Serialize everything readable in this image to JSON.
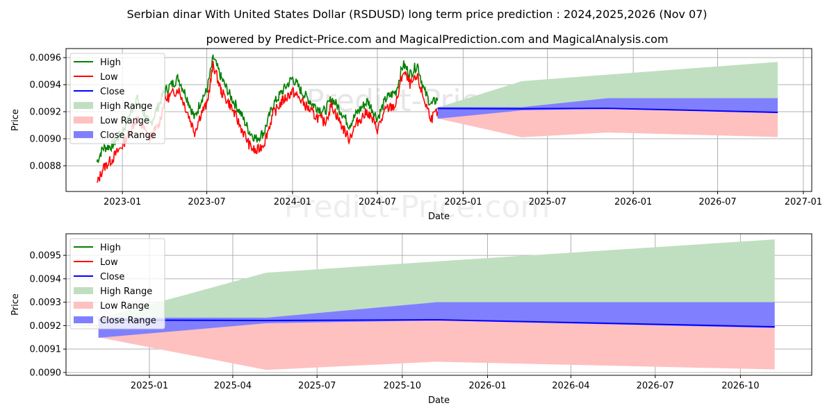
{
  "title": "Serbian dinar With United States Dollar (RSDUSD) long term price prediction : 2024,2025,2026 (Nov 07)",
  "subtitle": "powered by Predict-Price.com and MagicalPrediction.com and MagicalAnalysis.com",
  "watermark": "Predict-Price.com",
  "colors": {
    "high": "#008000",
    "low": "#ff0000",
    "close": "#0000ff",
    "high_range": "#c0dfc0",
    "low_range": "#ffc0c0",
    "close_range": "#8080ff"
  },
  "legend": [
    "High",
    "Low",
    "Close",
    "High Range",
    "Low Range",
    "Close Range"
  ],
  "chart_data": [
    {
      "type": "line",
      "xlabel": "Date",
      "ylabel": "Price",
      "xlim": [
        "2022-09-02",
        "2027-01-19"
      ],
      "ylim": [
        0.00861,
        0.009667
      ],
      "xticks": [
        "2023-01",
        "2023-07",
        "2024-01",
        "2024-07",
        "2025-01",
        "2025-07",
        "2026-01",
        "2026-07",
        "2027-01"
      ],
      "yticks": [
        "0.0088",
        "0.0090",
        "0.0092",
        "0.0094",
        "0.0096"
      ],
      "grid": true,
      "legend_position": "top-left"
    },
    {
      "type": "area",
      "xlabel": "Date",
      "ylabel": "Price",
      "xlim": [
        "2024-10-03",
        "2026-12-17"
      ],
      "ylim": [
        0.008988,
        0.009592
      ],
      "xticks": [
        "2025-01",
        "2025-04",
        "2025-07",
        "2025-10",
        "2026-01",
        "2026-04",
        "2026-07",
        "2026-10"
      ],
      "yticks": [
        "0.0090",
        "0.0091",
        "0.0092",
        "0.0093",
        "0.0094",
        "0.0095"
      ],
      "grid": true,
      "legend_position": "top-left"
    }
  ],
  "history": {
    "dates": [
      "2022-11-07",
      "2022-11-20",
      "2022-12-10",
      "2023-01-01",
      "2023-02-01",
      "2023-03-01",
      "2023-03-20",
      "2023-04-01",
      "2023-05-01",
      "2023-05-20",
      "2023-06-05",
      "2023-06-20",
      "2023-07-01",
      "2023-07-15",
      "2023-08-01",
      "2023-08-20",
      "2023-09-10",
      "2023-10-01",
      "2023-10-15",
      "2023-11-01",
      "2023-11-20",
      "2023-12-10",
      "2024-01-01",
      "2024-01-20",
      "2024-02-15",
      "2024-03-10",
      "2024-03-25",
      "2024-04-15",
      "2024-05-01",
      "2024-05-20",
      "2024-06-10",
      "2024-07-01",
      "2024-07-20",
      "2024-08-10",
      "2024-08-25",
      "2024-09-10",
      "2024-09-25",
      "2024-10-10",
      "2024-10-25",
      "2024-11-07"
    ],
    "high": [
      0.00883,
      0.00893,
      0.00895,
      0.00905,
      0.0093,
      0.0091,
      0.00925,
      0.00935,
      0.00945,
      0.0093,
      0.00915,
      0.0093,
      0.00935,
      0.0096,
      0.00945,
      0.00932,
      0.0092,
      0.00905,
      0.009,
      0.00905,
      0.00925,
      0.00935,
      0.00945,
      0.00935,
      0.00925,
      0.0092,
      0.0093,
      0.0092,
      0.0091,
      0.0092,
      0.00928,
      0.00915,
      0.0093,
      0.00935,
      0.00955,
      0.00948,
      0.00955,
      0.00935,
      0.00925,
      0.0093
    ],
    "low": [
      0.00866,
      0.00878,
      0.00885,
      0.00895,
      0.00915,
      0.009,
      0.0091,
      0.00928,
      0.00937,
      0.0092,
      0.00905,
      0.0092,
      0.00925,
      0.00955,
      0.00935,
      0.00925,
      0.0091,
      0.00895,
      0.0089,
      0.00897,
      0.00918,
      0.00928,
      0.00935,
      0.00928,
      0.00918,
      0.00912,
      0.00925,
      0.0091,
      0.009,
      0.00913,
      0.0092,
      0.00907,
      0.00922,
      0.00925,
      0.0095,
      0.0094,
      0.00945,
      0.00928,
      0.00915,
      0.0092
    ]
  },
  "forecast": {
    "dates": [
      "2024-11-07",
      "2025-05-07",
      "2025-11-07",
      "2026-11-07"
    ],
    "high_range_top": [
      0.00923,
      0.009426,
      0.009474,
      0.009568
    ],
    "high_range_bottom": [
      0.00923,
      0.009234,
      0.0093,
      0.0093
    ],
    "low_range_top": [
      0.00915,
      0.00921,
      0.009222,
      0.009195
    ],
    "low_range_bottom": [
      0.00915,
      0.009011,
      0.009046,
      0.009013
    ],
    "close_range_top": [
      0.009234,
      0.009234,
      0.0093,
      0.0093
    ],
    "close_range_bottom": [
      0.009148,
      0.00921,
      0.009222,
      0.00919
    ],
    "close": [
      0.009224,
      0.009222,
      0.009225,
      0.009195
    ]
  }
}
